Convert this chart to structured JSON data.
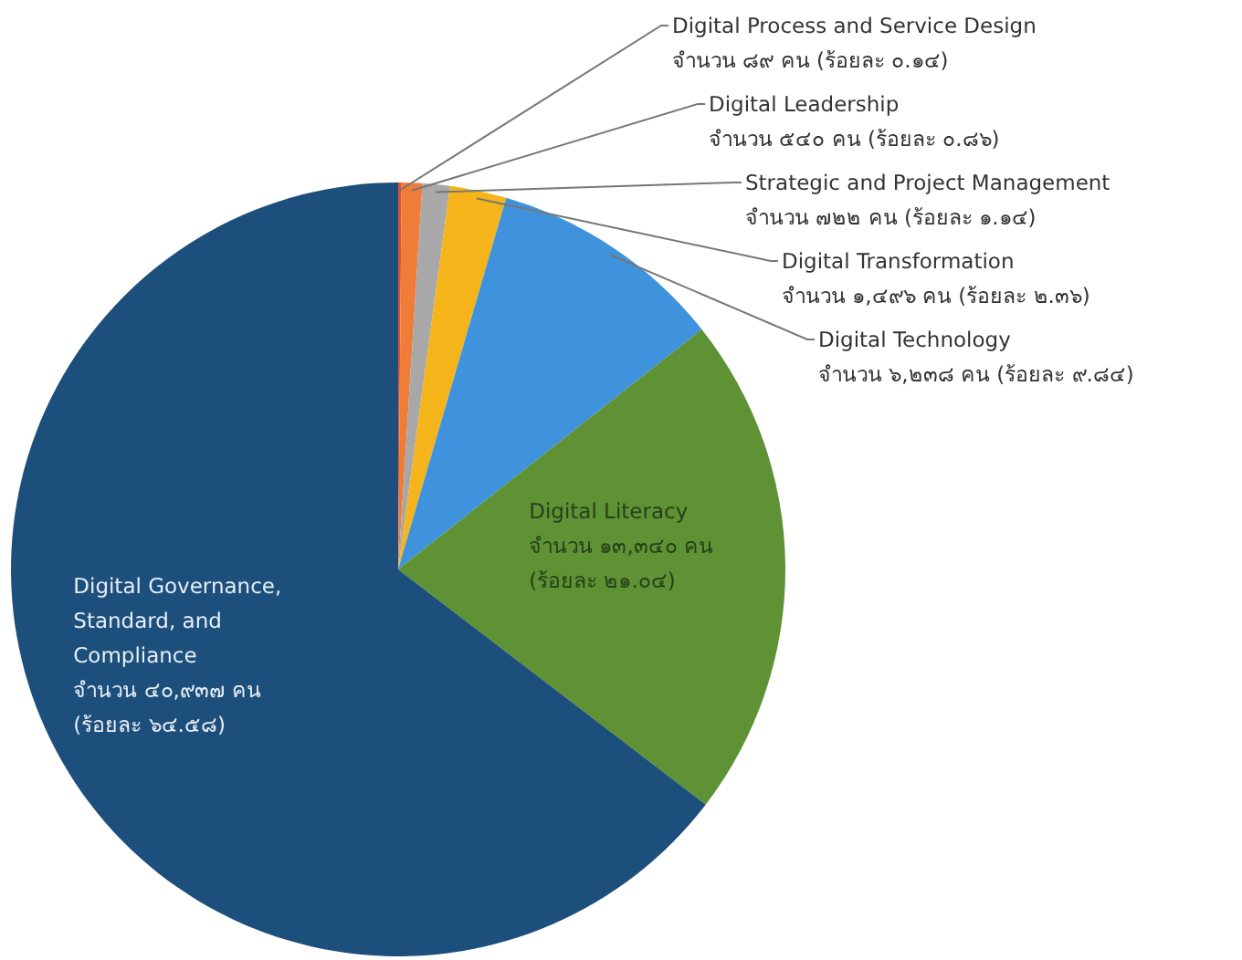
{
  "chart_data": {
    "type": "pie",
    "categories": [
      "Digital Process and Service Design",
      "Digital Leadership",
      "Strategic and Project Management",
      "Digital Transformation",
      "Digital Technology",
      "Digital Literacy",
      "Digital Governance, Standard, and Compliance"
    ],
    "values": [
      0.14,
      0.86,
      1.14,
      2.36,
      9.84,
      21.04,
      64.58
    ],
    "colors": [
      "#d9542b",
      "#f07c3a",
      "#a8a8a8",
      "#f4b41a",
      "#3f93dc",
      "#5f9135",
      "#1d4f7c"
    ],
    "value_labels": [
      "จำนวน ๘๙ คน (ร้อยละ ๐.๑๔)",
      "จำนวน ๕๔๐ คน (ร้อยละ ๐.๘๖)",
      "จำนวน ๗๒๒ คน (ร้อยละ ๑.๑๔)",
      "จำนวน ๑,๔๙๖ คน (ร้อยละ ๒.๓๖)",
      "จำนวน ๖,๒๓๘ คน (ร้อยละ ๙.๘๔)",
      "จำนวน ๑๓,๓๔๐ คน (ร้อยละ ๒๑.๐๔)",
      "จำนวน ๔๐,๙๓๗ คน (ร้อยละ ๖๔.๕๘)"
    ]
  }
}
